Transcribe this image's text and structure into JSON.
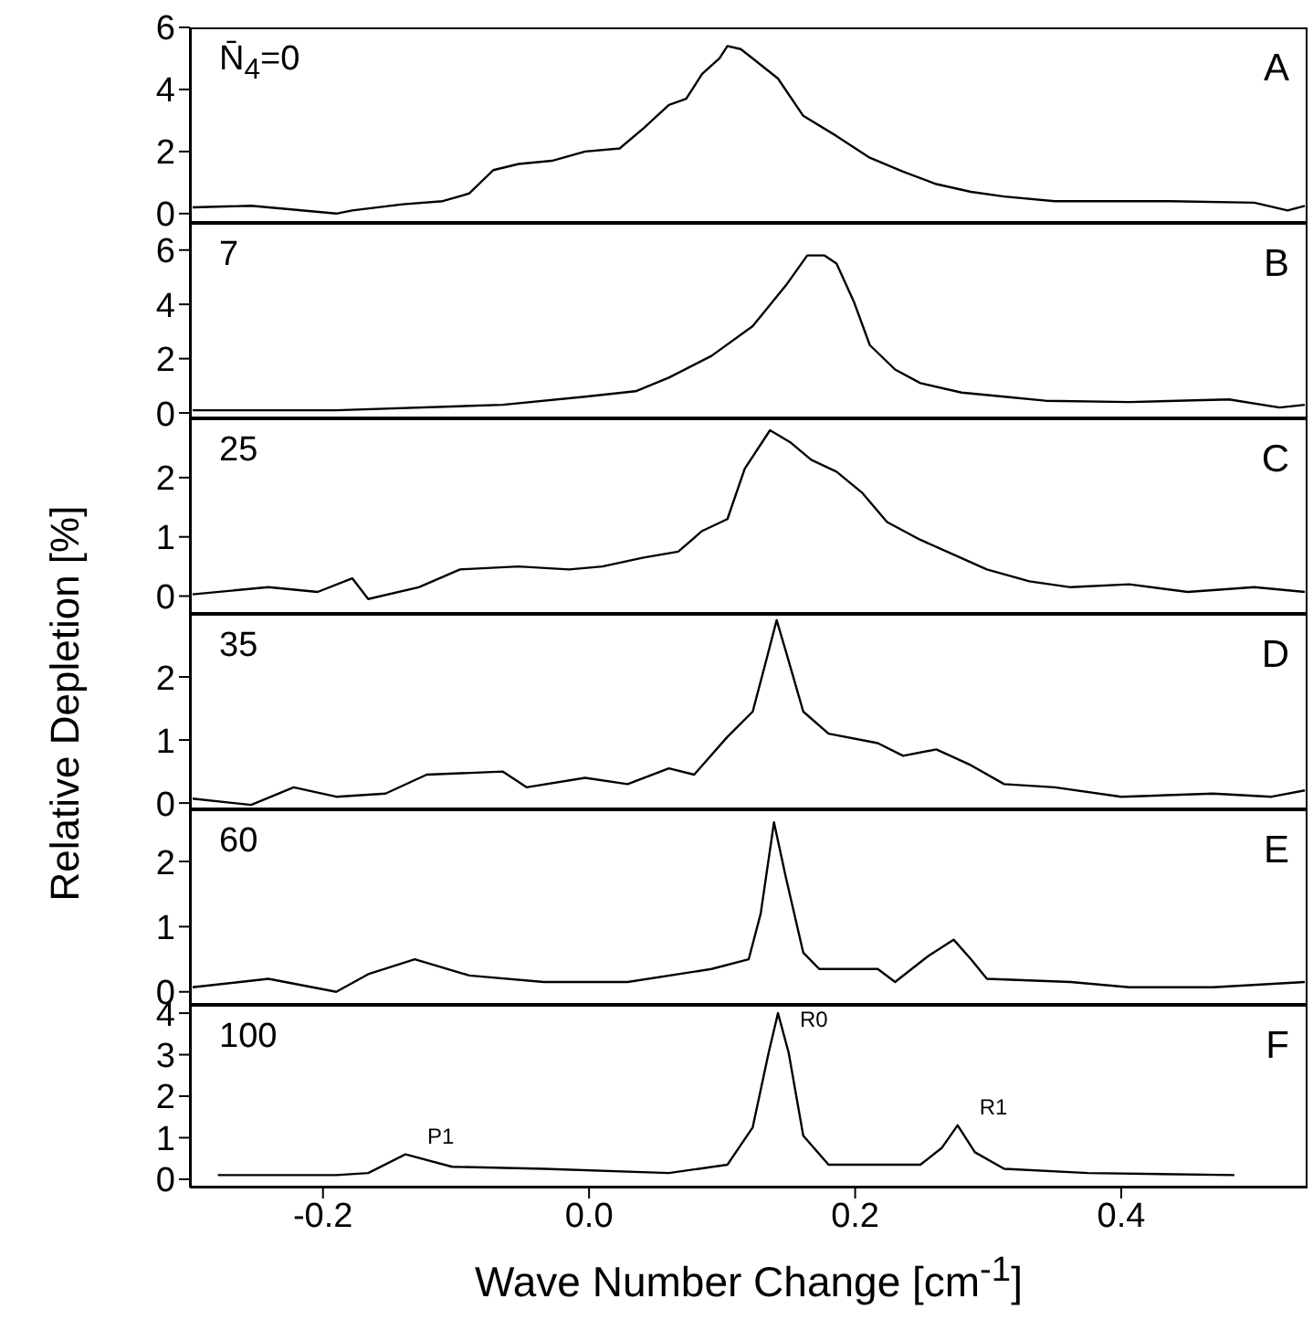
{
  "chart_data": [
    {
      "type": "line",
      "color": "#000000",
      "annotations": [
        "N̄$_{4}$=0",
        "A"
      ],
      "xlim": [
        -0.3,
        0.54
      ],
      "xticks": [
        -0.2,
        0,
        0.2,
        0.4
      ],
      "ylim": [
        -0.3,
        6
      ],
      "yticks": [
        0,
        2,
        4,
        6
      ],
      "tick_labels": "y",
      "x": [
        -0.298,
        -0.254,
        -0.19,
        -0.178,
        -0.14,
        -0.11,
        -0.09,
        -0.072,
        -0.053,
        -0.028,
        -0.003,
        0.023,
        0.041,
        0.06,
        0.073,
        0.085,
        0.098,
        0.104,
        0.114,
        0.123,
        0.142,
        0.161,
        0.186,
        0.211,
        0.236,
        0.261,
        0.287,
        0.312,
        0.35,
        0.387,
        0.437,
        0.5,
        0.525,
        0.538
      ],
      "values": [
        0.2,
        0.25,
        0,
        0.1,
        0.3,
        0.4,
        0.65,
        1.4,
        1.6,
        1.7,
        2.0,
        2.1,
        2.75,
        3.5,
        3.7,
        4.5,
        5.0,
        5.4,
        5.3,
        5.0,
        4.35,
        3.15,
        2.5,
        1.8,
        1.35,
        0.95,
        0.7,
        0.55,
        0.4,
        0.4,
        0.4,
        0.35,
        0.1,
        0.25
      ]
    },
    {
      "type": "line",
      "color": "#000000",
      "annotations": [
        "7",
        "B"
      ],
      "xlim": [
        -0.3,
        0.54
      ],
      "xticks": [
        -0.2,
        0,
        0.2,
        0.4
      ],
      "ylim": [
        -0.2,
        7
      ],
      "yticks": [
        0,
        2,
        4,
        6
      ],
      "tick_labels": "y",
      "x": [
        -0.298,
        -0.19,
        -0.065,
        -0.003,
        0.035,
        0.06,
        0.092,
        0.123,
        0.148,
        0.164,
        0.177,
        0.186,
        0.199,
        0.211,
        0.23,
        0.249,
        0.28,
        0.312,
        0.343,
        0.406,
        0.481,
        0.519,
        0.538
      ],
      "values": [
        0.1,
        0.1,
        0.3,
        0.6,
        0.8,
        1.3,
        2.1,
        3.2,
        4.7,
        5.8,
        5.8,
        5.5,
        4.1,
        2.5,
        1.6,
        1.1,
        0.75,
        0.6,
        0.45,
        0.4,
        0.5,
        0.2,
        0.3
      ]
    },
    {
      "type": "line",
      "color": "#000000",
      "annotations": [
        "25",
        "C"
      ],
      "ylabel": "Relative Depletion [%]",
      "xlim": [
        -0.3,
        0.54
      ],
      "xticks": [
        -0.2,
        0,
        0.2,
        0.4
      ],
      "ylim": [
        -0.3,
        3
      ],
      "yticks": [
        0,
        1,
        2
      ],
      "tick_labels": "y",
      "x": [
        -0.298,
        -0.241,
        -0.204,
        -0.178,
        -0.166,
        -0.128,
        -0.097,
        -0.053,
        -0.015,
        0.01,
        0.041,
        0.067,
        0.085,
        0.104,
        0.117,
        0.136,
        0.151,
        0.167,
        0.186,
        0.205,
        0.224,
        0.249,
        0.274,
        0.299,
        0.331,
        0.362,
        0.406,
        0.45,
        0.5,
        0.538
      ],
      "values": [
        0.03,
        0.15,
        0.07,
        0.3,
        -0.05,
        0.15,
        0.45,
        0.5,
        0.45,
        0.5,
        0.65,
        0.75,
        1.1,
        1.3,
        2.15,
        2.8,
        2.6,
        2.3,
        2.1,
        1.75,
        1.25,
        0.95,
        0.7,
        0.45,
        0.25,
        0.15,
        0.2,
        0.07,
        0.15,
        0.07
      ]
    },
    {
      "type": "line",
      "color": "#000000",
      "annotations": [
        "35",
        "D"
      ],
      "xlim": [
        -0.3,
        0.54
      ],
      "xticks": [
        -0.2,
        0,
        0.2,
        0.4
      ],
      "ylim": [
        -0.1,
        3
      ],
      "yticks": [
        0,
        1,
        2
      ],
      "tick_labels": "y",
      "x": [
        -0.298,
        -0.254,
        -0.222,
        -0.19,
        -0.153,
        -0.122,
        -0.065,
        -0.047,
        -0.003,
        0.029,
        0.06,
        0.079,
        0.104,
        0.123,
        0.133,
        0.141,
        0.148,
        0.161,
        0.18,
        0.217,
        0.236,
        0.261,
        0.287,
        0.312,
        0.35,
        0.4,
        0.469,
        0.513,
        0.538
      ],
      "values": [
        0.07,
        -0.03,
        0.25,
        0.1,
        0.15,
        0.45,
        0.5,
        0.25,
        0.4,
        0.3,
        0.55,
        0.45,
        1.05,
        1.45,
        2.25,
        2.9,
        2.4,
        1.45,
        1.1,
        0.95,
        0.75,
        0.85,
        0.6,
        0.3,
        0.25,
        0.1,
        0.15,
        0.1,
        0.2
      ]
    },
    {
      "type": "line",
      "color": "#000000",
      "annotations": [
        "60",
        "E"
      ],
      "xlim": [
        -0.3,
        0.54
      ],
      "xticks": [
        -0.2,
        0,
        0.2,
        0.4
      ],
      "ylim": [
        -0.2,
        2.8
      ],
      "yticks": [
        0,
        1,
        2
      ],
      "tick_labels": "y",
      "x": [
        -0.298,
        -0.241,
        -0.19,
        -0.166,
        -0.131,
        -0.09,
        -0.034,
        0.029,
        0.092,
        0.12,
        0.129,
        0.139,
        0.148,
        0.161,
        0.173,
        0.217,
        0.23,
        0.255,
        0.274,
        0.287,
        0.299,
        0.362,
        0.406,
        0.469,
        0.538
      ],
      "values": [
        0.07,
        0.2,
        0,
        0.27,
        0.5,
        0.25,
        0.15,
        0.15,
        0.35,
        0.5,
        1.2,
        2.6,
        1.75,
        0.6,
        0.35,
        0.35,
        0.15,
        0.55,
        0.8,
        0.5,
        0.2,
        0.15,
        0.07,
        0.07,
        0.15
      ]
    },
    {
      "type": "line",
      "color": "#000000",
      "annotations": [
        "100",
        "F",
        {
          "text": "R0",
          "x": 0.142,
          "y": 4.0
        },
        {
          "text": "P1",
          "x": -0.138,
          "y": 0.6
        },
        {
          "text": "R1",
          "x": 0.277,
          "y": 1.3
        }
      ],
      "xlabel": "Wave Number Change [cm$^{-1}$]",
      "xlim": [
        -0.3,
        0.54
      ],
      "xticks": [
        -0.2,
        {
          "value": 0,
          "label": "0.0"
        },
        0.2,
        0.4
      ],
      "ylim": [
        -0.2,
        4.2
      ],
      "yticks": [
        0,
        1,
        2,
        3,
        4
      ],
      "x": [
        -0.279,
        -0.19,
        -0.166,
        -0.138,
        -0.103,
        -0.034,
        0.06,
        0.104,
        0.123,
        0.135,
        0.142,
        0.15,
        0.161,
        0.18,
        0.249,
        0.265,
        0.277,
        0.29,
        0.312,
        0.375,
        0.485
      ],
      "values": [
        0.1,
        0.1,
        0.15,
        0.6,
        0.3,
        0.25,
        0.15,
        0.35,
        1.25,
        3.05,
        4.0,
        3.05,
        1.05,
        0.35,
        0.35,
        0.75,
        1.3,
        0.65,
        0.25,
        0.15,
        0.1
      ]
    }
  ]
}
